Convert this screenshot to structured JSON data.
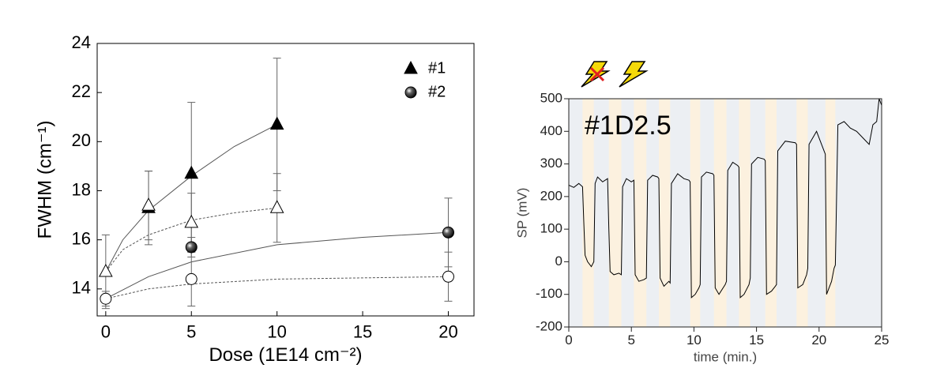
{
  "chart_data": [
    {
      "type": "scatter",
      "xlabel": "Dose (1E14 cm⁻²)",
      "ylabel": "FWHM (cm⁻¹)",
      "xlim": [
        -0.5,
        21.5
      ],
      "ylim": [
        12.9,
        24
      ],
      "xticks": [
        0,
        5,
        10,
        15,
        20
      ],
      "yticks": [
        14,
        16,
        18,
        20,
        22,
        24
      ],
      "legend": "upper right",
      "series": [
        {
          "name": "#1",
          "marker": "triangle",
          "filled": true,
          "color": "#000000",
          "x": [
            2.5,
            5,
            10
          ],
          "values": [
            17.3,
            18.7,
            20.7
          ],
          "errors": [
            1.5,
            2.9,
            2.7
          ]
        },
        {
          "marker": "triangle",
          "filled": false,
          "color": "#000000",
          "x": [
            0,
            2.5,
            5,
            10
          ],
          "values": [
            14.7,
            17.4,
            16.7,
            17.3
          ],
          "errors": [
            1.5,
            1.4,
            1.2,
            1.4
          ]
        },
        {
          "name": "#2",
          "marker": "sphere",
          "filled": true,
          "color": "#000000",
          "x": [
            5,
            20
          ],
          "values": [
            15.7,
            16.3
          ],
          "errors": [
            0.4,
            1.4
          ]
        },
        {
          "marker": "circle",
          "filled": false,
          "color": "#000000",
          "x": [
            0,
            5,
            20
          ],
          "values": [
            13.6,
            14.4,
            14.5
          ],
          "errors": [
            0.3,
            1.1,
            1.0
          ]
        }
      ],
      "fits": [
        {
          "dashed": false,
          "x": [
            0,
            1,
            2.5,
            5,
            7.5,
            10
          ],
          "values": [
            14.7,
            16.0,
            17.2,
            18.6,
            19.8,
            20.7
          ]
        },
        {
          "dashed": true,
          "x": [
            0,
            1,
            2.5,
            5,
            7.5,
            10
          ],
          "values": [
            14.7,
            15.6,
            16.2,
            16.8,
            17.1,
            17.3
          ]
        },
        {
          "dashed": false,
          "x": [
            0,
            2.5,
            5,
            10,
            15,
            20
          ],
          "values": [
            13.6,
            14.5,
            15.1,
            15.8,
            16.1,
            16.3
          ]
        },
        {
          "dashed": true,
          "x": [
            0,
            2.5,
            5,
            10,
            20
          ],
          "values": [
            13.6,
            14.0,
            14.2,
            14.4,
            14.5
          ]
        }
      ]
    },
    {
      "type": "line",
      "xlabel": "time (min.)",
      "ylabel": "SP (mV)",
      "annotation": "#1D2.5",
      "xlim": [
        0,
        25
      ],
      "ylim": [
        -200,
        500
      ],
      "xticks": [
        0,
        5,
        10,
        15,
        20,
        25
      ],
      "yticks": [
        -200,
        -100,
        0,
        100,
        200,
        300,
        400,
        500
      ],
      "background": "#eceff3",
      "band_color": "#fcf1df",
      "bands": [
        [
          1.1,
          2.0
        ],
        [
          3.2,
          4.2
        ],
        [
          5.2,
          6.2
        ],
        [
          7.2,
          8.1
        ],
        [
          9.7,
          10.5
        ],
        [
          11.6,
          12.6
        ],
        [
          13.6,
          14.5
        ],
        [
          15.7,
          16.6
        ],
        [
          18.2,
          19.1
        ],
        [
          20.5,
          21.3
        ]
      ],
      "series": [
        {
          "color": "#000000",
          "x": [
            0,
            0.4,
            0.8,
            1.1,
            1.2,
            1.3,
            1.5,
            1.8,
            2.0,
            2.1,
            2.3,
            2.7,
            3.1,
            3.2,
            3.3,
            3.6,
            4.0,
            4.2,
            4.3,
            4.6,
            5.0,
            5.2,
            5.3,
            5.6,
            6.0,
            6.2,
            6.3,
            6.7,
            7.1,
            7.2,
            7.3,
            7.6,
            8.0,
            8.1,
            8.2,
            8.7,
            9.2,
            9.6,
            9.7,
            9.8,
            10.1,
            10.4,
            10.5,
            10.6,
            11.0,
            11.5,
            11.6,
            11.7,
            12.0,
            12.5,
            12.6,
            12.7,
            13.1,
            13.5,
            13.6,
            13.7,
            14.0,
            14.4,
            14.5,
            14.6,
            15.1,
            15.6,
            15.7,
            15.8,
            16.2,
            16.5,
            16.6,
            16.7,
            17.3,
            18.1,
            18.2,
            18.3,
            18.7,
            19.0,
            19.1,
            19.2,
            19.8,
            20.4,
            20.5,
            20.6,
            21.0,
            21.2,
            21.3,
            21.5,
            22.0,
            22.5,
            23.0,
            23.5,
            24.0,
            24.3,
            24.6,
            24.8,
            25.0
          ],
          "values": [
            235,
            228,
            240,
            230,
            120,
            20,
            0,
            -15,
            0,
            240,
            260,
            245,
            255,
            100,
            -30,
            -40,
            -35,
            -40,
            230,
            255,
            245,
            250,
            -40,
            -60,
            -55,
            -50,
            250,
            265,
            260,
            255,
            -50,
            -75,
            -60,
            -65,
            240,
            270,
            255,
            250,
            245,
            -110,
            -100,
            -80,
            -70,
            260,
            275,
            270,
            265,
            -80,
            -100,
            -70,
            -60,
            280,
            305,
            295,
            290,
            -110,
            -100,
            -70,
            -50,
            300,
            320,
            315,
            310,
            -100,
            -90,
            -75,
            -70,
            340,
            370,
            365,
            360,
            -80,
            -70,
            -40,
            -20,
            360,
            400,
            340,
            330,
            -100,
            -60,
            -20,
            -10,
            420,
            430,
            410,
            400,
            380,
            360,
            420,
            430,
            500,
            480
          ]
        }
      ]
    }
  ]
}
